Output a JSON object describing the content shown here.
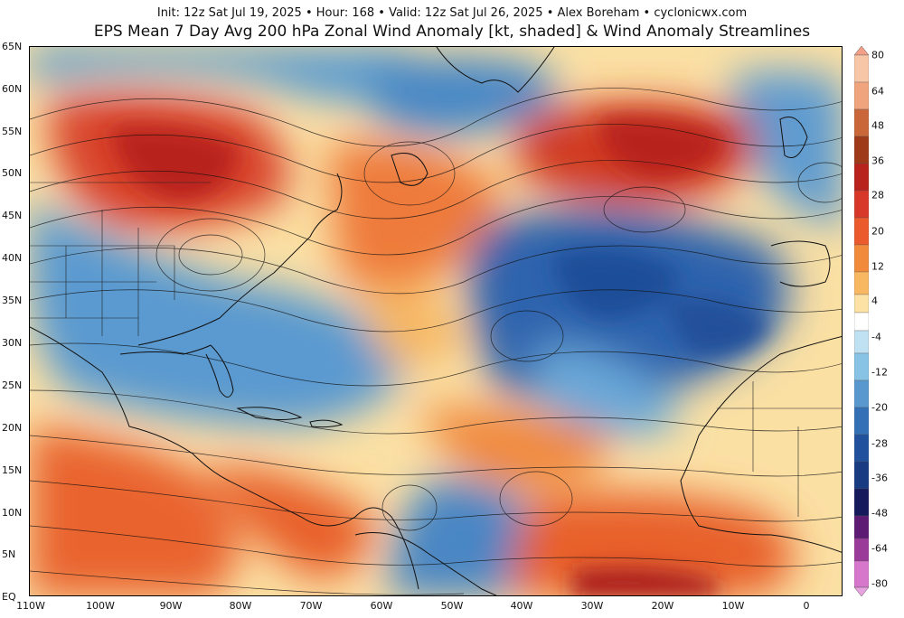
{
  "header": {
    "subtitle": "Init: 12z Sat Jul 19, 2025  •  Hour: 168  •  Valid: 12z Sat Jul 26, 2025  •  Alex Boreham  •  cyclonicwx.com",
    "title": "EPS Mean 7 Day Avg 200 hPa Zonal Wind Anomaly [kt, shaded] & Wind Anomaly Streamlines"
  },
  "map": {
    "region": "North Atlantic / North America / West Africa",
    "lat_labels": [
      "65N",
      "60N",
      "55N",
      "50N",
      "45N",
      "40N",
      "35N",
      "30N",
      "25N",
      "20N",
      "15N",
      "10N",
      "5N",
      "EQ"
    ],
    "lon_labels": [
      "110W",
      "100W",
      "90W",
      "80W",
      "70W",
      "60W",
      "50W",
      "40W",
      "30W",
      "20W",
      "10W",
      "0"
    ],
    "layers": [
      "zonal-wind-anomaly-shading",
      "coastlines",
      "political-borders",
      "streamlines"
    ]
  },
  "colorbar": {
    "labels": [
      "80",
      "64",
      "48",
      "36",
      "28",
      "20",
      "12",
      "4",
      "-4",
      "-12",
      "-20",
      "-28",
      "-36",
      "-48",
      "-64",
      "-80"
    ],
    "colors": {
      "positive": [
        "#f7c6a6",
        "#ef9a76",
        "#d35a2b",
        "#b21f1f",
        "#d7301f",
        "#ef6a1c",
        "#f6a04a",
        "#fcd283"
      ],
      "neutral": "#ffffff",
      "negative": [
        "#bfe1f2",
        "#88c3e6",
        "#4f8fc8",
        "#2a5ba6",
        "#1a3f8a",
        "#151a5c",
        "#6a1d7d",
        "#b64aa8",
        "#e387d6"
      ]
    }
  }
}
